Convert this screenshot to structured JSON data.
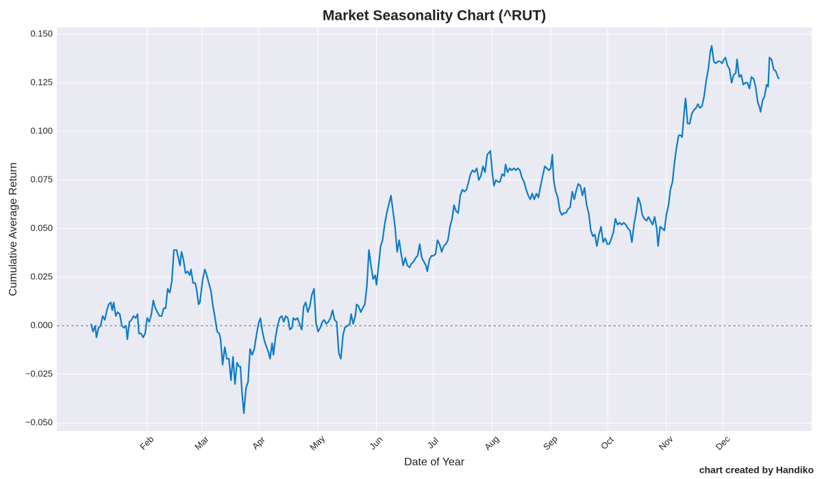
{
  "chart_data": {
    "type": "line",
    "title": "Market Seasonality Chart (^RUT)",
    "xlabel": "Date of Year",
    "ylabel": "Cumulative Average Return",
    "annotation": "chart created by Handiko",
    "background": "#eaeaf2",
    "grid": true,
    "hline": 0,
    "xlim": [
      -15.7,
      382.7
    ],
    "ylim": [
      -0.0542,
      0.1535
    ],
    "xticks": [
      {
        "value": 32,
        "label": "Feb"
      },
      {
        "value": 61,
        "label": "Mar"
      },
      {
        "value": 91,
        "label": "Apr"
      },
      {
        "value": 122,
        "label": "May"
      },
      {
        "value": 153,
        "label": "Jun"
      },
      {
        "value": 183,
        "label": "Jul"
      },
      {
        "value": 214,
        "label": "Aug"
      },
      {
        "value": 245,
        "label": "Sep"
      },
      {
        "value": 275,
        "label": "Oct"
      },
      {
        "value": 306,
        "label": "Nov"
      },
      {
        "value": 336,
        "label": "Dec"
      }
    ],
    "yticks": [
      {
        "value": -0.05,
        "label": "−0.050"
      },
      {
        "value": -0.025,
        "label": "−0.025"
      },
      {
        "value": 0,
        "label": "0.000"
      },
      {
        "value": 0.025,
        "label": "0.025"
      },
      {
        "value": 0.05,
        "label": "0.050"
      },
      {
        "value": 0.075,
        "label": "0.075"
      },
      {
        "value": 0.1,
        "label": "0.100"
      },
      {
        "value": 0.125,
        "label": "0.125"
      },
      {
        "value": 0.15,
        "label": "0.150"
      }
    ],
    "x": [
      2.3,
      3.4,
      4.5,
      5.2,
      6.3,
      7.4,
      8.5,
      9.6,
      10.7,
      11.7,
      12.8,
      13.5,
      14.3,
      15.4,
      16.4,
      17.5,
      18.6,
      19.7,
      20.8,
      21.5,
      22.6,
      23.7,
      24.8,
      25.9,
      26.9,
      27.6,
      28.7,
      29.8,
      30.9,
      32.0,
      33.1,
      34.2,
      35.2,
      36.3,
      37.4,
      38.5,
      39.6,
      40.7,
      41.7,
      42.8,
      43.9,
      45.0,
      46.1,
      47.5,
      49.3,
      50.1,
      51.1,
      52.2,
      53.3,
      54.4,
      55.1,
      56.2,
      57.3,
      58.0,
      59.1,
      59.8,
      61.3,
      62.4,
      63.4,
      64.5,
      65.6,
      66.7,
      67.8,
      68.9,
      70.0,
      70.7,
      71.8,
      72.9,
      74.0,
      75.1,
      76.2,
      77.3,
      78.3,
      79.4,
      80.5,
      81.2,
      82.0,
      83.0,
      84.1,
      85.2,
      86.3,
      87.4,
      88.5,
      89.6,
      90.7,
      91.7,
      92.8,
      93.9,
      95.0,
      96.1,
      96.8,
      97.9,
      98.6,
      99.7,
      100.8,
      101.9,
      103.0,
      104.1,
      105.1,
      106.2,
      107.3,
      108.4,
      109.1,
      110.2,
      111.3,
      112.4,
      113.5,
      114.6,
      115.6,
      116.7,
      117.8,
      118.9,
      120.0,
      121.1,
      122.2,
      123.3,
      124.4,
      125.4,
      126.5,
      127.6,
      128.7,
      129.8,
      130.9,
      132.0,
      133.1,
      134.2,
      135.3,
      136.3,
      137.8,
      138.9,
      139.6,
      140.7,
      141.8,
      142.5,
      143.6,
      144.7,
      145.7,
      146.8,
      147.9,
      149.0,
      150.1,
      151.2,
      152.3,
      153.0,
      154.1,
      155.2,
      156.2,
      157.3,
      158.4,
      159.9,
      160.6,
      161.7,
      162.8,
      163.9,
      165.0,
      166.0,
      167.1,
      168.2,
      169.3,
      170.4,
      171.5,
      172.6,
      173.7,
      174.7,
      175.8,
      176.9,
      178.0,
      179.1,
      179.8,
      180.9,
      182.0,
      183.1,
      184.2,
      185.2,
      186.3,
      187.4,
      188.5,
      189.6,
      190.7,
      191.8,
      192.9,
      193.9,
      195.0,
      196.1,
      197.2,
      198.3,
      199.4,
      200.5,
      201.6,
      202.6,
      203.7,
      204.8,
      205.9,
      207.0,
      208.1,
      209.2,
      210.3,
      211.4,
      212.4,
      213.1,
      214.2,
      215.0,
      216.0,
      217.1,
      218.2,
      219.3,
      220.4,
      221.1,
      222.2,
      223.3,
      224.4,
      225.5,
      226.5,
      227.6,
      228.7,
      229.8,
      230.9,
      232.0,
      233.1,
      234.2,
      235.2,
      236.3,
      237.4,
      238.5,
      239.6,
      240.7,
      241.8,
      242.9,
      243.9,
      245.0,
      245.8,
      246.5,
      247.6,
      248.7,
      249.8,
      250.8,
      251.9,
      253.0,
      254.1,
      255.2,
      256.3,
      257.4,
      258.5,
      259.5,
      260.6,
      261.7,
      262.8,
      263.9,
      265.0,
      266.1,
      267.2,
      268.2,
      269.3,
      270.4,
      271.5,
      272.6,
      273.7,
      274.8,
      275.9,
      277.0,
      278.0,
      279.1,
      280.2,
      281.3,
      282.4,
      283.5,
      284.6,
      285.7,
      286.8,
      287.8,
      288.9,
      290.0,
      291.1,
      292.2,
      293.3,
      294.4,
      295.5,
      296.5,
      297.6,
      298.7,
      299.8,
      300.9,
      301.6,
      302.7,
      303.8,
      304.9,
      306.0,
      307.1,
      308.1,
      309.2,
      310.3,
      311.4,
      312.5,
      313.6,
      314.3,
      315.4,
      316.1,
      317.2,
      318.3,
      319.4,
      320.5,
      321.6,
      322.6,
      323.7,
      324.8,
      325.9,
      327.0,
      328.1,
      329.2,
      329.9,
      331.0,
      332.1,
      333.2,
      334.3,
      335.4,
      336.4,
      337.2,
      338.2,
      339.3,
      340.4,
      341.5,
      342.6,
      343.3,
      344.4,
      345.5,
      346.6,
      347.7,
      348.8,
      349.8,
      350.9,
      352.0,
      353.1,
      354.2,
      355.3,
      355.7,
      356.8,
      357.8,
      358.9,
      359.7,
      360.4,
      361.5,
      362.6,
      363.7,
      364.8,
      365.5
    ],
    "series": [
      {
        "name": "^RUT",
        "color": "#0a7bc8",
        "values": [
          0.001,
          -0.003,
          0,
          -0.006,
          -0.001,
          0,
          0.005,
          0.003,
          0.008,
          0.011,
          0.012,
          0.008,
          0.012,
          0.005,
          0.007,
          0.006,
          0,
          -0.001,
          0,
          -0.007,
          0.002,
          0.003,
          0.005,
          0.004,
          0.006,
          -0.004,
          -0.004,
          -0.006,
          -0.004,
          0.004,
          0.002,
          0.006,
          0.013,
          0.009,
          0.007,
          0.005,
          0.005,
          0.009,
          0.009,
          0.019,
          0.017,
          0.023,
          0.039,
          0.039,
          0.031,
          0.038,
          0.034,
          0.027,
          0.028,
          0.026,
          0.029,
          0.022,
          0.022,
          0.019,
          0.011,
          0.012,
          0.024,
          0.029,
          0.026,
          0.022,
          0.018,
          0.01,
          0.004,
          -0.003,
          -0.004,
          -0.007,
          -0.02,
          -0.011,
          -0.017,
          -0.017,
          -0.028,
          -0.016,
          -0.03,
          -0.019,
          -0.021,
          -0.021,
          -0.034,
          -0.045,
          -0.032,
          -0.029,
          -0.012,
          -0.015,
          -0.012,
          -0.005,
          0.001,
          0.004,
          -0.003,
          -0.008,
          -0.011,
          -0.014,
          -0.017,
          -0.009,
          -0.015,
          -0.006,
          0,
          0.004,
          0.005,
          0.002,
          0.005,
          0.004,
          -0.002,
          -0.001,
          0.004,
          0.003,
          0.004,
          0.001,
          -0.002,
          0.01,
          0.012,
          0.007,
          0.01,
          0.016,
          0.019,
          0.001,
          -0.003,
          -0.001,
          0.002,
          0.003,
          0.001,
          0.002,
          0.004,
          0.008,
          0.003,
          0.002,
          -0.014,
          -0.017,
          -0.005,
          -0.001,
          0,
          0.001,
          0.006,
          0.001,
          0.005,
          0.011,
          0.01,
          0.007,
          0.009,
          0.011,
          0.02,
          0.039,
          0.031,
          0.024,
          0.026,
          0.021,
          0.031,
          0.041,
          0.044,
          0.052,
          0.058,
          0.064,
          0.067,
          0.059,
          0.051,
          0.038,
          0.044,
          0.037,
          0.031,
          0.035,
          0.031,
          0.03,
          0.032,
          0.033,
          0.035,
          0.036,
          0.042,
          0.035,
          0.033,
          0.031,
          0.028,
          0.034,
          0.036,
          0.036,
          0.037,
          0.044,
          0.042,
          0.038,
          0.041,
          0.042,
          0.044,
          0.051,
          0.055,
          0.062,
          0.059,
          0.058,
          0.067,
          0.07,
          0.069,
          0.07,
          0.074,
          0.078,
          0.08,
          0.079,
          0.081,
          0.075,
          0.077,
          0.082,
          0.079,
          0.088,
          0.089,
          0.09,
          0.078,
          0.072,
          0.075,
          0.074,
          0.074,
          0.078,
          0.077,
          0.083,
          0.079,
          0.081,
          0.08,
          0.081,
          0.08,
          0.081,
          0.08,
          0.076,
          0.074,
          0.07,
          0.067,
          0.065,
          0.068,
          0.065,
          0.068,
          0.066,
          0.072,
          0.077,
          0.082,
          0.081,
          0.08,
          0.081,
          0.088,
          0.075,
          0.069,
          0.066,
          0.059,
          0.057,
          0.058,
          0.058,
          0.06,
          0.061,
          0.069,
          0.065,
          0.07,
          0.073,
          0.072,
          0.067,
          0.071,
          0.062,
          0.058,
          0.049,
          0.046,
          0.047,
          0.041,
          0.047,
          0.051,
          0.043,
          0.045,
          0.042,
          0.042,
          0.045,
          0.048,
          0.055,
          0.052,
          0.053,
          0.052,
          0.053,
          0.052,
          0.05,
          0.049,
          0.043,
          0.052,
          0.058,
          0.066,
          0.063,
          0.057,
          0.055,
          0.054,
          0.056,
          0.054,
          0.052,
          0.056,
          0.05,
          0.041,
          0.051,
          0.05,
          0.049,
          0.057,
          0.062,
          0.07,
          0.074,
          0.084,
          0.092,
          0.098,
          0.098,
          0.097,
          0.11,
          0.117,
          0.104,
          0.104,
          0.109,
          0.111,
          0.112,
          0.114,
          0.112,
          0.113,
          0.118,
          0.126,
          0.132,
          0.141,
          0.144,
          0.136,
          0.135,
          0.136,
          0.136,
          0.135,
          0.137,
          0.138,
          0.134,
          0.132,
          0.125,
          0.129,
          0.13,
          0.137,
          0.128,
          0.129,
          0.124,
          0.125,
          0.125,
          0.122,
          0.128,
          0.127,
          0.123,
          0.115,
          0.112,
          0.11,
          0.116,
          0.118,
          0.124,
          0.123,
          0.138,
          0.137,
          0.132,
          0.131,
          0.128,
          0.127
        ]
      }
    ]
  }
}
